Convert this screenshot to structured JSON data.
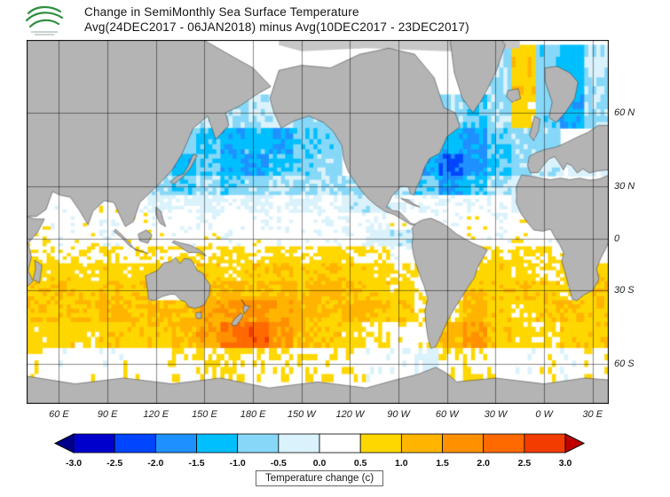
{
  "header": {
    "logo": "noaa-logo",
    "title": "Change in SemiMonthly Sea Surface Temperature",
    "subtitle": "Avg(24DEC2017 - 06JAN2018) minus Avg(10DEC2017 - 23DEC2017)"
  },
  "map": {
    "lat_labels": [
      "60 N",
      "30 N",
      "0",
      "30 S",
      "60 S"
    ],
    "lat_values": [
      60,
      30,
      0,
      -30,
      -60
    ],
    "lon_labels": [
      "60 E",
      "90 E",
      "120 E",
      "150 E",
      "180 E",
      "150 W",
      "120 W",
      "90 W",
      "60 W",
      "30 W",
      "0 W",
      "30 E"
    ],
    "lon_values": [
      60,
      90,
      120,
      150,
      180,
      210,
      240,
      270,
      300,
      330,
      360,
      390
    ]
  },
  "colorbar": {
    "tick_labels": [
      "-3.0",
      "-2.5",
      "-2.0",
      "-1.5",
      "-1.0",
      "-0.5",
      "0.0",
      "0.5",
      "1.0",
      "1.5",
      "2.0",
      "2.5",
      "3.0"
    ],
    "caption": "Temperature change  (c)"
  },
  "chart_data": {
    "type": "heatmap",
    "title": "Change in SemiMonthly Sea Surface Temperature",
    "subtitle": "Avg(24DEC2017 - 06JAN2018) minus Avg(10DEC2017 - 23DEC2017)",
    "variable": "semimonthly sea surface temperature change",
    "units": "°C",
    "projection": "mercator",
    "lon_range_deg_east": [
      40,
      400
    ],
    "lat_range": [
      -70,
      76
    ],
    "grid": {
      "lon_start": 40,
      "lon_step": 15,
      "lat_step": 10,
      "lat_tops": [
        75,
        65,
        55,
        45,
        35,
        25,
        15,
        5,
        -5,
        -15,
        -25,
        -35,
        -45,
        -55
      ],
      "values": [
        [
          null,
          null,
          null,
          null,
          null,
          null,
          null,
          null,
          null,
          null,
          null,
          null,
          null,
          null,
          null,
          null,
          null,
          null,
          null,
          -0.6,
          0.9,
          -0.8,
          -1.2,
          -0.5
        ],
        [
          null,
          null,
          null,
          null,
          null,
          null,
          null,
          -0.4,
          -0.6,
          -0.4,
          -0.3,
          -0.7,
          -0.9,
          null,
          null,
          null,
          null,
          -0.6,
          -1.1,
          -0.6,
          0.7,
          -0.9,
          -1.4,
          -0.6
        ],
        [
          null,
          null,
          null,
          null,
          null,
          null,
          -0.8,
          -1.1,
          -1.4,
          -1.2,
          -1.5,
          -1.0,
          -0.8,
          null,
          null,
          null,
          null,
          -1.3,
          -1.6,
          -1.0,
          -0.6,
          -0.7,
          null,
          null
        ],
        [
          null,
          null,
          null,
          null,
          null,
          -0.9,
          -1.3,
          -0.9,
          -1.3,
          -1.6,
          -1.1,
          -0.8,
          -0.6,
          null,
          null,
          null,
          -1.4,
          -2.1,
          -1.7,
          -1.1,
          -0.7,
          -0.4,
          -0.2,
          -0.2
        ],
        [
          null,
          null,
          null,
          null,
          null,
          -0.6,
          -0.9,
          -0.6,
          -0.9,
          -0.7,
          -0.5,
          -0.6,
          -0.4,
          -0.6,
          null,
          -0.5,
          -0.9,
          -1.6,
          -1.1,
          -0.6,
          -0.3,
          null,
          null,
          null
        ],
        [
          null,
          0.2,
          null,
          0.3,
          0.1,
          -0.2,
          0.1,
          -0.2,
          0.1,
          -0.2,
          0.1,
          -0.2,
          0.1,
          -0.3,
          -0.4,
          0.1,
          0.1,
          0.2,
          0.1,
          0.2,
          -0.2,
          null,
          null,
          null
        ],
        [
          0.3,
          0.2,
          0.3,
          0.2,
          0.3,
          0.2,
          0.2,
          0.1,
          0.2,
          0.1,
          0.2,
          0.2,
          0.1,
          0.2,
          0.1,
          0.3,
          0.2,
          0.2,
          0.3,
          0.2,
          0.3,
          0.2,
          null,
          null
        ],
        [
          0.3,
          0.2,
          0.3,
          0.2,
          0.3,
          0.3,
          0.2,
          0.3,
          0.2,
          0.3,
          0.2,
          0.2,
          0.1,
          0.2,
          -0.2,
          -0.3,
          null,
          null,
          0.3,
          0.2,
          0.3,
          0.2,
          null,
          null
        ],
        [
          0.4,
          0.5,
          0.4,
          0.5,
          0.4,
          0.5,
          0.6,
          0.6,
          0.7,
          0.5,
          0.7,
          0.5,
          0.7,
          0.5,
          0.4,
          0.2,
          null,
          null,
          0.5,
          0.5,
          0.6,
          0.5,
          0.4,
          null
        ],
        [
          0.7,
          0.8,
          0.7,
          0.8,
          0.7,
          0.7,
          null,
          0.8,
          0.7,
          0.9,
          1.0,
          0.8,
          1.0,
          0.8,
          0.7,
          0.5,
          0.4,
          null,
          0.7,
          0.8,
          0.7,
          0.5,
          0.7,
          0.8
        ],
        [
          0.8,
          1.0,
          0.8,
          1.0,
          0.9,
          null,
          null,
          1.0,
          1.2,
          1.0,
          1.2,
          1.0,
          1.2,
          1.0,
          0.8,
          0.7,
          0.5,
          null,
          1.0,
          0.8,
          1.0,
          0.8,
          0.7,
          1.0
        ],
        [
          1.0,
          0.9,
          1.0,
          1.2,
          1.0,
          1.1,
          1.0,
          1.3,
          1.5,
          1.7,
          1.4,
          1.2,
          1.0,
          1.2,
          1.0,
          0.8,
          0.5,
          0.6,
          1.1,
          0.8,
          0.7,
          0.9,
          1.0,
          0.8
        ],
        [
          0.7,
          0.8,
          0.7,
          0.8,
          0.8,
          0.9,
          1.1,
          1.4,
          2.1,
          2.3,
          1.6,
          1.1,
          0.8,
          0.7,
          0.5,
          0.3,
          0.3,
          1.2,
          1.6,
          0.9,
          0.7,
          0.6,
          0.8,
          0.8
        ],
        [
          0.3,
          0.2,
          0.3,
          0.2,
          0.3,
          0.3,
          0.4,
          0.5,
          0.6,
          0.4,
          0.5,
          0.4,
          0.3,
          0.3,
          0.2,
          0.1,
          -0.2,
          0.4,
          0.5,
          0.3,
          0.2,
          0.3,
          0.2,
          0.3
        ]
      ]
    },
    "palette": {
      "boundaries": [
        -3.0,
        -2.5,
        -2.0,
        -1.5,
        -1.0,
        -0.5,
        0.0,
        0.5,
        1.0,
        1.5,
        2.0,
        2.5,
        3.0
      ],
      "colors": [
        "#00008b",
        "#0000cd",
        "#0045ff",
        "#1e90ff",
        "#00bfff",
        "#87d8f8",
        "#daf2fb",
        "#ffffff",
        "#ffd700",
        "#ffb400",
        "#ff9000",
        "#ff6a00",
        "#f23c00",
        "#c00000"
      ]
    },
    "land_color": "#b4b4b4",
    "ice_color": "#c7c7c7",
    "grid_lines": {
      "lon_every": 30,
      "lat_every": 30,
      "color": "#000000"
    },
    "legend_position": "bottom"
  }
}
